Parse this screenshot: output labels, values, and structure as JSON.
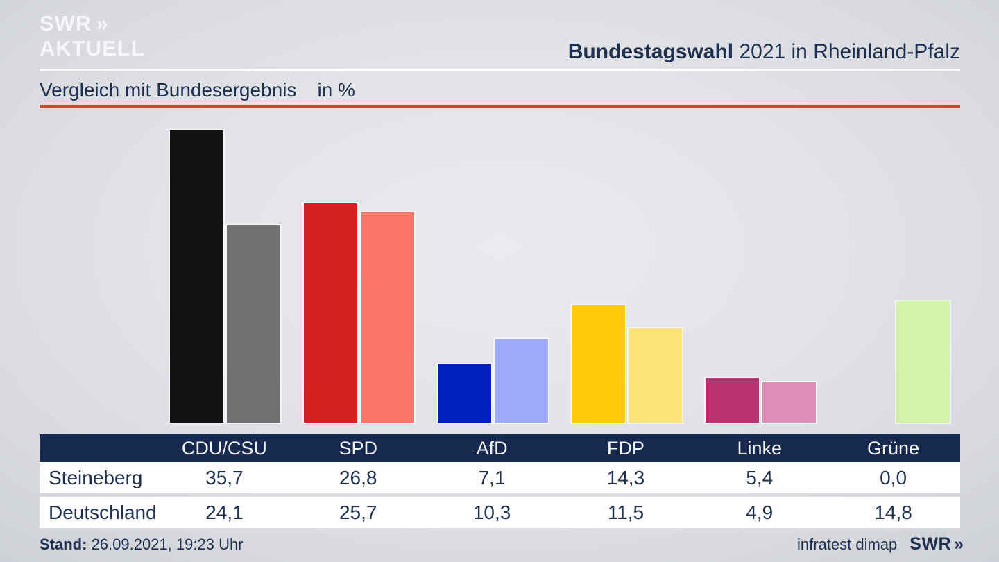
{
  "header": {
    "logo_line1": "SWR",
    "logo_chevrons": "»",
    "logo_line2": "AKTUELL",
    "title_bold": "Bundestagswahl",
    "title_rest": " 2021 in Rheinland-Pfalz"
  },
  "subtitle": {
    "text": "Vergleich mit Bundesergebnis",
    "unit": "in %"
  },
  "table": {
    "corner": "",
    "columns": [
      "CDU/CSU",
      "SPD",
      "AfD",
      "FDP",
      "Linke",
      "Grüne"
    ],
    "rows": [
      {
        "label": "Steineberg",
        "values": [
          "35,7",
          "26,8",
          "7,1",
          "14,3",
          "5,4",
          "0,0"
        ]
      },
      {
        "label": "Deutschland",
        "values": [
          "24,1",
          "25,7",
          "10,3",
          "11,5",
          "4,9",
          "14,8"
        ]
      }
    ]
  },
  "chart_data": {
    "type": "bar",
    "title": "Vergleich mit Bundesergebnis in %",
    "categories": [
      "CDU/CSU",
      "SPD",
      "AfD",
      "FDP",
      "Linke",
      "Grüne"
    ],
    "series": [
      {
        "name": "Steineberg",
        "values": [
          35.7,
          26.8,
          7.1,
          14.3,
          5.4,
          0.0
        ],
        "colors": [
          "#131313",
          "#d42120",
          "#0120bd",
          "#fec908",
          "#bd3273",
          null
        ]
      },
      {
        "name": "Deutschland",
        "values": [
          24.1,
          25.7,
          10.3,
          11.5,
          4.9,
          14.8
        ],
        "colors": [
          "#717171",
          "#fb756b",
          "#9babf7",
          "#fee27a",
          "#dd8db8",
          "#d3f3a9"
        ]
      }
    ],
    "ylim": [
      0,
      37.6
    ],
    "unit": "%",
    "grid": false,
    "legend_position": "table-below"
  },
  "footer": {
    "stand_label": "Stand:",
    "stand_value": " 26.09.2021, 19:23 Uhr",
    "source": "infratest dimap",
    "logo": "SWR",
    "logo_chevrons": "»"
  },
  "colors": {
    "accent_rule": "#c64a31",
    "navy_text": "#1e3050",
    "table_header_bg": "#17294e"
  }
}
